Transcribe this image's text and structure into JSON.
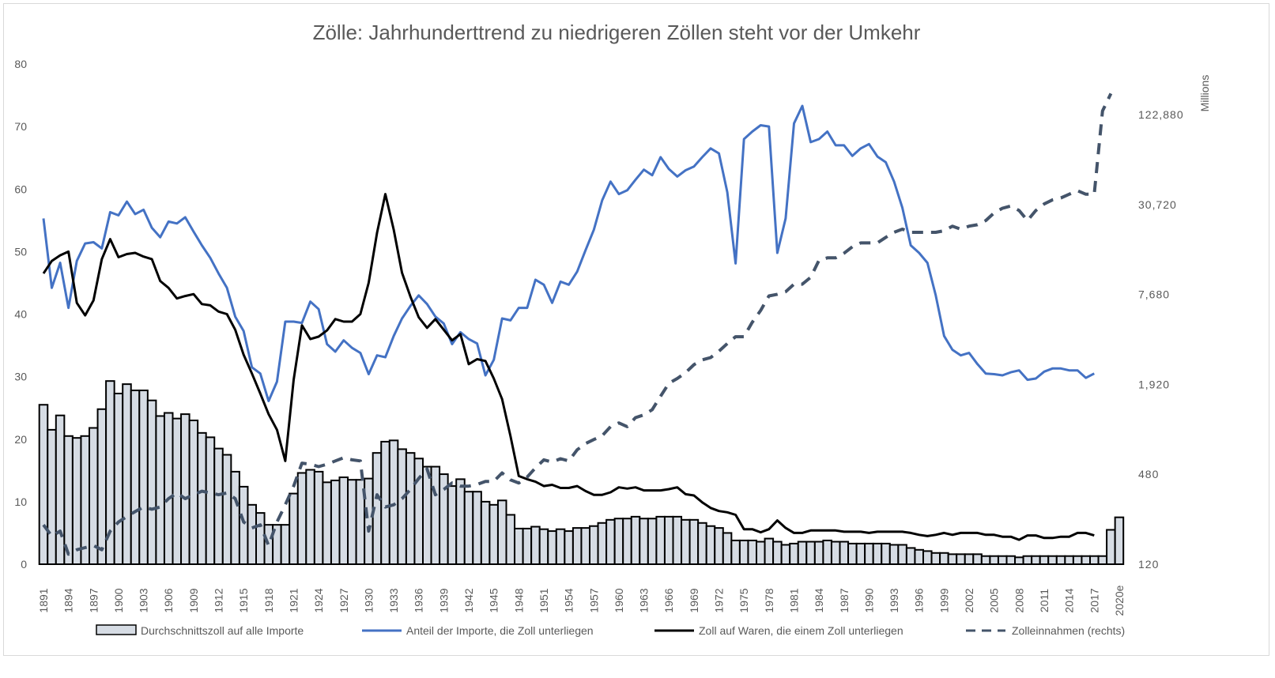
{
  "chart_data": {
    "type": "bar+line",
    "title": "Zölle: Jahrhunderttrend zu niedrigeren Zöllen steht vor der Umkehr",
    "y_left": {
      "ticks": [
        0,
        10,
        20,
        30,
        40,
        50,
        60,
        70,
        80
      ],
      "range": [
        0,
        80
      ]
    },
    "y_right": {
      "label": "Millions",
      "scale": "log",
      "ticks": [
        "120",
        "480",
        "1,920",
        "7,680",
        "30,720",
        "122,880"
      ],
      "range": [
        120,
        122880
      ]
    },
    "x_start": 1891,
    "x_end": 2020,
    "x_tick_every": 3,
    "last_label": "2020e",
    "legend_position": "bottom",
    "series": [
      {
        "name": "Durchschnittszoll auf alle Importe",
        "type": "bar",
        "axis": "left",
        "color": "#D6DCE4",
        "start": 1891,
        "values": [
          25.5,
          21.5,
          23.8,
          20.5,
          20.2,
          20.5,
          21.8,
          24.8,
          29.3,
          27.3,
          28.8,
          27.8,
          27.8,
          26.2,
          23.7,
          24.2,
          23.3,
          24,
          23,
          21,
          20.3,
          18.5,
          17.5,
          14.8,
          12.4,
          9.5,
          8.2,
          6.3,
          6.3,
          6.3,
          11.3,
          14.6,
          15.1,
          14.8,
          13.1,
          13.4,
          13.9,
          13.5,
          13.5,
          13.7,
          17.8,
          19.6,
          19.8,
          18.4,
          17.8,
          16.9,
          15.6,
          15.6,
          14.4,
          12.5,
          13.6,
          11.6,
          11.6,
          10,
          9.5,
          10.2,
          7.9,
          5.7,
          5.7,
          6,
          5.6,
          5.3,
          5.6,
          5.3,
          5.8,
          5.8,
          6.1,
          6.6,
          7.1,
          7.3,
          7.3,
          7.6,
          7.3,
          7.3,
          7.6,
          7.6,
          7.6,
          7.1,
          7.1,
          6.6,
          6.1,
          5.8,
          5,
          3.8,
          3.8,
          3.8,
          3.6,
          4.1,
          3.6,
          3.1,
          3.3,
          3.6,
          3.6,
          3.6,
          3.8,
          3.6,
          3.6,
          3.3,
          3.3,
          3.3,
          3.3,
          3.3,
          3.1,
          3.1,
          2.6,
          2.3,
          2.1,
          1.8,
          1.8,
          1.6,
          1.6,
          1.6,
          1.6,
          1.3,
          1.3,
          1.3,
          1.3,
          1.1,
          1.3,
          1.3,
          1.3,
          1.3,
          1.3,
          1.3,
          1.3,
          1.3,
          1.3,
          1.3,
          5.5,
          7.5
        ]
      },
      {
        "name": "Anteil der Importe, die Zoll unterliegen",
        "type": "line",
        "axis": "left",
        "color": "#4472C4",
        "start": 1891,
        "values": [
          55.3,
          44.2,
          48.2,
          41,
          48.5,
          51.3,
          51.5,
          50.5,
          56.3,
          55.8,
          58,
          56,
          56.7,
          53.8,
          52.3,
          54.8,
          54.5,
          55.5,
          53.2,
          51,
          49,
          46.5,
          44.2,
          39.6,
          37.3,
          31.5,
          30.5,
          26.1,
          29.2,
          38.8,
          38.8,
          38.6,
          42,
          40.8,
          35.2,
          34,
          35.8,
          34.6,
          33.8,
          30.4,
          33.4,
          33.1,
          36.5,
          39.3,
          41.3,
          43,
          41.6,
          39.6,
          38.5,
          35.2,
          37.1,
          36,
          35.3,
          30.2,
          32.7,
          39.3,
          39,
          41,
          41,
          45.5,
          44.7,
          41.8,
          45.2,
          44.7,
          46.8,
          50.2,
          53.5,
          58.2,
          61.2,
          59.2,
          59.8,
          61.5,
          63.1,
          62.2,
          65.1,
          63.2,
          62,
          63,
          63.6,
          65.1,
          66.5,
          65.7,
          59.5,
          48.1,
          68,
          69.2,
          70.2,
          70,
          49.8,
          55.3,
          70.5,
          73.3,
          67.5,
          68,
          69.2,
          67,
          67,
          65.3,
          66.5,
          67.2,
          65.2,
          64.3,
          61.2,
          57,
          51,
          49.8,
          48.2,
          43,
          36.5,
          34.3,
          33.4,
          33.8,
          32,
          30.5,
          30.4,
          30.2,
          30.7,
          31,
          29.5,
          29.7,
          30.8,
          31.3,
          31.3,
          31,
          31,
          29.8,
          30.5
        ]
      },
      {
        "name": "Zoll auf Waren, die einem Zoll unterliegen",
        "type": "line",
        "axis": "left",
        "color": "#000000",
        "start": 1891,
        "values": [
          46.5,
          48.5,
          49.4,
          50,
          41.8,
          39.8,
          42.2,
          48.8,
          52,
          49.1,
          49.6,
          49.8,
          49.2,
          48.8,
          45.3,
          44.2,
          42.5,
          42.9,
          43.2,
          41.6,
          41.4,
          40.4,
          40,
          37.5,
          33.5,
          30.5,
          27.3,
          24,
          21.5,
          16.5,
          29.5,
          38.2,
          36,
          36.4,
          37.4,
          39.2,
          38.8,
          38.8,
          40,
          45,
          53,
          59.2,
          53.5,
          46.6,
          42.8,
          39.5,
          37.8,
          39.2,
          37.5,
          35.8,
          36.8,
          32,
          32.8,
          32.5,
          29.7,
          26.4,
          20.5,
          14.1,
          13.6,
          13.2,
          12.5,
          12.7,
          12.2,
          12.2,
          12.5,
          11.7,
          11.1,
          11.1,
          11.5,
          12.3,
          12.1,
          12.3,
          11.8,
          11.8,
          11.8,
          12,
          12.3,
          11.2,
          11,
          9.9,
          9,
          8.5,
          8.3,
          7.9,
          5.6,
          5.6,
          5.1,
          5.6,
          7,
          5.8,
          5,
          5,
          5.4,
          5.4,
          5.4,
          5.4,
          5.2,
          5.2,
          5.2,
          5,
          5.2,
          5.2,
          5.2,
          5.2,
          5,
          4.7,
          4.5,
          4.7,
          5,
          4.7,
          5,
          5,
          5,
          4.7,
          4.7,
          4.4,
          4.4,
          3.9,
          4.6,
          4.6,
          4.2,
          4.2,
          4.4,
          4.4,
          5,
          5,
          4.6
        ]
      },
      {
        "name": "Zolleinnahmen (rechts)",
        "type": "line",
        "axis": "right",
        "color": "#44546A",
        "dash": true,
        "start": 1891,
        "values": [
          220,
          185,
          200,
          140,
          150,
          155,
          160,
          150,
          200,
          230,
          250,
          270,
          290,
          280,
          290,
          330,
          360,
          330,
          350,
          370,
          360,
          350,
          360,
          330,
          230,
          210,
          220,
          160,
          230,
          300,
          400,
          570,
          560,
          540,
          560,
          590,
          620,
          600,
          590,
          200,
          350,
          290,
          300,
          330,
          380,
          450,
          520,
          350,
          380,
          420,
          400,
          400,
          410,
          430,
          430,
          490,
          440,
          420,
          460,
          530,
          600,
          580,
          610,
          590,
          700,
          770,
          820,
          870,
          1000,
          1060,
          1000,
          1150,
          1200,
          1300,
          1600,
          1950,
          2100,
          2300,
          2600,
          2800,
          2900,
          3200,
          3600,
          4000,
          4000,
          5000,
          6000,
          7500,
          7700,
          8000,
          9000,
          9000,
          10000,
          13000,
          13500,
          13500,
          14500,
          16000,
          17000,
          17000,
          17000,
          18500,
          20000,
          21000,
          20000,
          20000,
          20000,
          20000,
          20500,
          22000,
          21000,
          22000,
          22500,
          24000,
          27000,
          29000,
          30000,
          28000,
          24000,
          28000,
          31000,
          33000,
          34000,
          36000,
          38000,
          36000,
          36000,
          130000,
          170000
        ]
      }
    ]
  }
}
